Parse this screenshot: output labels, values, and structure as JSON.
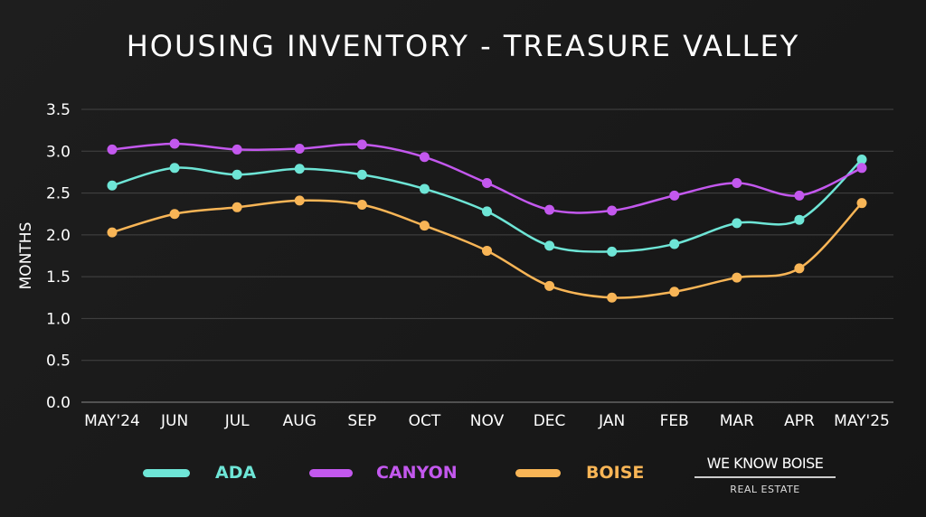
{
  "chart_data": {
    "type": "line",
    "title": "HOUSING INVENTORY - TREASURE VALLEY",
    "xlabel": "",
    "ylabel": "MONTHS",
    "ylim": [
      0,
      3.5
    ],
    "yticks": [
      "0.0",
      "0.5",
      "1.0",
      "1.5",
      "2.0",
      "2.5",
      "3.0",
      "3.5"
    ],
    "grid": true,
    "legend_position": "bottom",
    "categories": [
      "MAY'24",
      "JUN",
      "JUL",
      "AUG",
      "SEP",
      "OCT",
      "NOV",
      "DEC",
      "JAN",
      "FEB",
      "MAR",
      "APR",
      "MAY'25"
    ],
    "series": [
      {
        "name": "ADA",
        "color": "#6ee5d6",
        "values": [
          2.59,
          2.8,
          2.72,
          2.79,
          2.72,
          2.55,
          2.28,
          1.87,
          1.8,
          1.89,
          2.14,
          2.18,
          2.9
        ]
      },
      {
        "name": "CANYON",
        "color": "#c358ee",
        "values": [
          3.02,
          3.09,
          3.02,
          3.03,
          3.08,
          2.93,
          2.62,
          2.3,
          2.29,
          2.47,
          2.62,
          2.47,
          2.8
        ]
      },
      {
        "name": "BOISE",
        "color": "#f8b556",
        "values": [
          2.03,
          2.25,
          2.33,
          2.41,
          2.36,
          2.11,
          1.81,
          1.39,
          1.25,
          1.32,
          1.49,
          1.6,
          2.38
        ]
      }
    ]
  },
  "logo": {
    "line1": "WE KNOW BOISE",
    "line2": "REAL ESTATE"
  }
}
